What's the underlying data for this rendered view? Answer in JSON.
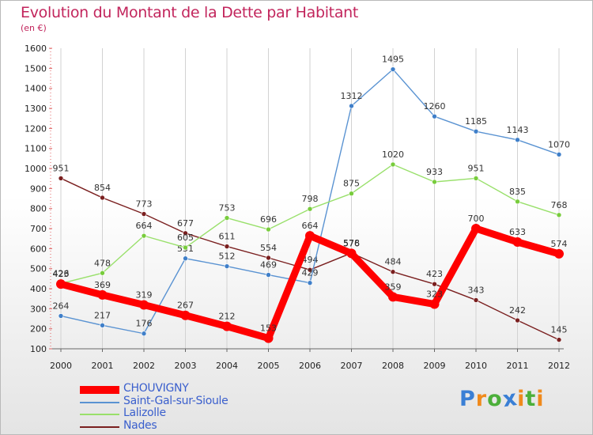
{
  "title": "Evolution du Montant de la Dette par Habitant",
  "unit": "(en €)",
  "chart_data": {
    "type": "line",
    "title": "Evolution du Montant de la Dette par Habitant",
    "subtitle": "(en €)",
    "ylim": [
      100,
      1600
    ],
    "yticks": [
      100,
      200,
      300,
      400,
      500,
      600,
      700,
      800,
      900,
      1000,
      1100,
      1200,
      1300,
      1400,
      1500,
      1600
    ],
    "x": [
      "2000",
      "2001",
      "2002",
      "2003",
      "2004",
      "2005",
      "2006",
      "2007",
      "2008",
      "2009",
      "2010",
      "2011",
      "2012"
    ],
    "grid": "vertical",
    "legend": "bottom-left",
    "series": [
      {
        "name": "Nades",
        "color": "#7a1f1f",
        "values": [
          951,
          854,
          773,
          677,
          611,
          554,
          494,
          578,
          484,
          423,
          343,
          242,
          145
        ]
      },
      {
        "name": "Saint-Gal-sur-Sioule",
        "color": "#5a93d2",
        "values": [
          264,
          217,
          176,
          551,
          512,
          469,
          429,
          1312,
          1495,
          1260,
          1185,
          1143,
          1070
        ]
      },
      {
        "name": "Lalizolle",
        "color": "#99e06b",
        "values": [
          426,
          478,
          664,
          605,
          753,
          696,
          798,
          875,
          1020,
          933,
          951,
          835,
          768
        ]
      },
      {
        "name": "CHOUVIGNY",
        "color": "#ff0000",
        "values": [
          423,
          369,
          319,
          267,
          212,
          153,
          664,
          576,
          359,
          323,
          700,
          633,
          574
        ]
      }
    ]
  },
  "legend": [
    {
      "name": "CHOUVIGNY",
      "color": "#ff0000"
    },
    {
      "name": "Saint-Gal-sur-Sioule",
      "color": "#5a93d2"
    },
    {
      "name": "Lalizolle",
      "color": "#99e06b"
    },
    {
      "name": "Nades",
      "color": "#7a1f1f"
    }
  ],
  "logo": {
    "letters": [
      "P",
      "r",
      "o",
      "x",
      "i",
      "t",
      "i"
    ],
    "colors": [
      "#3a7fd5",
      "#f08a1c",
      "#4caf3a",
      "#3a7fd5",
      "#f08a1c",
      "#4caf3a",
      "#f08a1c"
    ]
  }
}
